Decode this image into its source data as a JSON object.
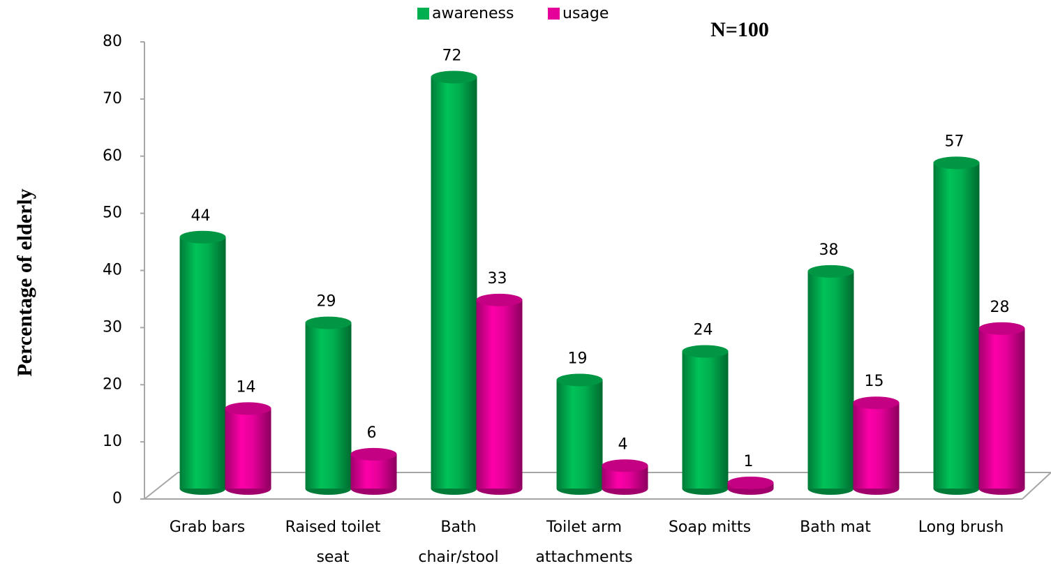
{
  "chart_data": {
    "type": "bar",
    "y_axis_label": "Percentage of elderly",
    "annotation": "N=100",
    "categories": [
      "Grab bars",
      "Raised toilet seat",
      "Bath chair/stool",
      "Toilet arm attachments",
      "Soap mitts",
      "Bath mat",
      "Long brush"
    ],
    "series": [
      {
        "name": "awareness",
        "color": "#00b050",
        "values": [
          44,
          29,
          72,
          19,
          24,
          38,
          57
        ]
      },
      {
        "name": "usage",
        "color": "#e6009a",
        "values": [
          14,
          6,
          33,
          4,
          1,
          15,
          28
        ]
      }
    ],
    "ylim": [
      0,
      80
    ],
    "yticks": [
      0,
      10,
      20,
      30,
      40,
      50,
      60,
      70,
      80
    ],
    "grid": false,
    "legend": "top"
  }
}
